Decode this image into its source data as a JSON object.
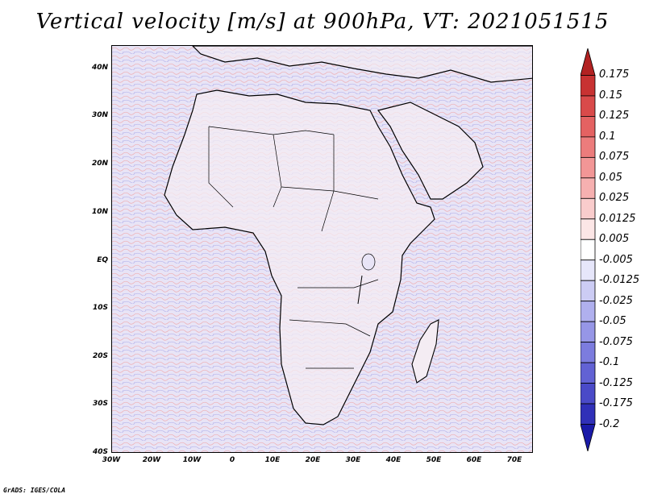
{
  "title": "Vertical velocity [m/s] at 900hPa, VT: 2021051515",
  "footer": "GrADS: IGES/COLA",
  "map": {
    "region": "Africa",
    "lat_labels": [
      "40N",
      "30N",
      "20N",
      "10N",
      "EQ",
      "10S",
      "20S",
      "30S",
      "40S"
    ],
    "lon_labels": [
      "30W",
      "20W",
      "10W",
      "0",
      "10E",
      "20E",
      "30E",
      "40E",
      "50E",
      "60E",
      "70E"
    ],
    "lat_range": [
      -40,
      45
    ],
    "lon_range": [
      -30,
      75
    ],
    "ocean_fill": "#e8e4f6",
    "land_fill": "#f4ecf3"
  },
  "colorbar": {
    "levels": [
      "0.175",
      "0.15",
      "0.125",
      "0.1",
      "0.075",
      "0.05",
      "0.025",
      "0.0125",
      "0.005",
      "-0.005",
      "-0.0125",
      "-0.025",
      "-0.05",
      "-0.075",
      "-0.1",
      "-0.125",
      "-0.175",
      "-0.2"
    ],
    "colors": [
      "#b22222",
      "#c83232",
      "#d94a4a",
      "#e46262",
      "#ec7c7c",
      "#f29696",
      "#f6b0b0",
      "#f9cccc",
      "#fce6e6",
      "#ffffff",
      "#e6e6fa",
      "#ccccf4",
      "#b0b0ee",
      "#9696e6",
      "#7c7cde",
      "#6262d4",
      "#4a4ac8",
      "#3030b8",
      "#1a1aa8"
    ]
  }
}
